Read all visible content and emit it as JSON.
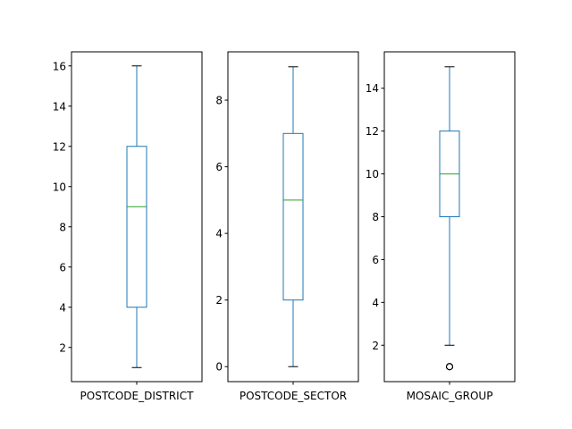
{
  "chart_data": [
    {
      "type": "box",
      "category": "POSTCODE_DISTRICT",
      "box": {
        "whisker_low": 1,
        "q1": 4,
        "median": 9,
        "q3": 12,
        "whisker_high": 16
      },
      "outliers": [],
      "ylim": [
        0.3,
        16.7
      ],
      "yticks": [
        2,
        4,
        6,
        8,
        10,
        12,
        14,
        16
      ],
      "colors": {
        "box": "#1f77b4",
        "median": "#2ca02c",
        "cap": "#000000"
      }
    },
    {
      "type": "box",
      "category": "POSTCODE_SECTOR",
      "box": {
        "whisker_low": 0,
        "q1": 2,
        "median": 5,
        "q3": 7,
        "whisker_high": 9
      },
      "outliers": [],
      "ylim": [
        -0.45,
        9.45
      ],
      "yticks": [
        0,
        2,
        4,
        6,
        8
      ],
      "colors": {
        "box": "#1f77b4",
        "median": "#2ca02c",
        "cap": "#000000"
      }
    },
    {
      "type": "box",
      "category": "MOSAIC_GROUP",
      "box": {
        "whisker_low": 2,
        "q1": 8,
        "median": 10,
        "q3": 12,
        "whisker_high": 15
      },
      "outliers": [
        1,
        1,
        1
      ],
      "ylim": [
        0.3,
        15.7
      ],
      "yticks": [
        2,
        4,
        6,
        8,
        10,
        12,
        14
      ],
      "colors": {
        "box": "#1f77b4",
        "median": "#2ca02c",
        "cap": "#000000"
      }
    }
  ]
}
